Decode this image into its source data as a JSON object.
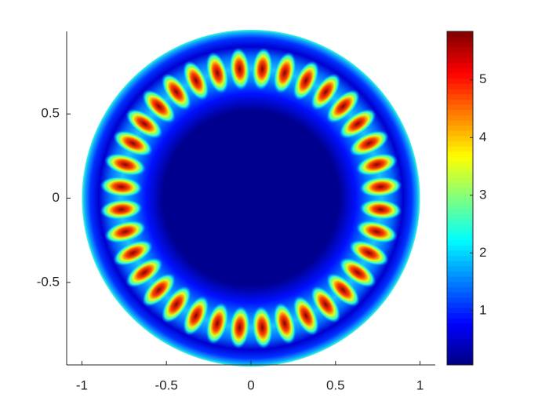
{
  "chart_data": {
    "type": "ring-mode",
    "colormap": "jet",
    "xlim": [
      -1.09,
      1.09
    ],
    "ylim": [
      -0.99,
      0.99
    ],
    "xticks": [
      -1,
      -0.5,
      0,
      0.5,
      1
    ],
    "yticks": [
      -0.5,
      0,
      0.5
    ],
    "domain_radius": 1,
    "ring_radius": 0.77,
    "angles": [
      5,
      15,
      25,
      35,
      45,
      55,
      65,
      75,
      85,
      95,
      105,
      115,
      125,
      135,
      145,
      155,
      165,
      175,
      185,
      195,
      205,
      215,
      225,
      235,
      245,
      255,
      265,
      275,
      285,
      295,
      305,
      315,
      325,
      335,
      345,
      355
    ],
    "values": [
      5.8,
      5.8,
      5.8,
      5.8,
      5.8,
      5.8,
      5.8,
      5.8,
      5.8,
      5.8,
      5.8,
      5.8,
      5.8,
      5.8,
      5.8,
      5.8,
      5.8,
      5.8,
      5.8,
      5.8,
      5.8,
      5.8,
      5.8,
      5.8,
      5.8,
      5.8,
      5.8,
      5.8,
      5.8,
      5.8,
      5.8,
      5.8,
      5.8,
      5.8,
      5.8,
      5.8
    ],
    "clim": [
      0.06,
      5.84
    ],
    "cticks": [
      1,
      2,
      3,
      4,
      5
    ]
  }
}
